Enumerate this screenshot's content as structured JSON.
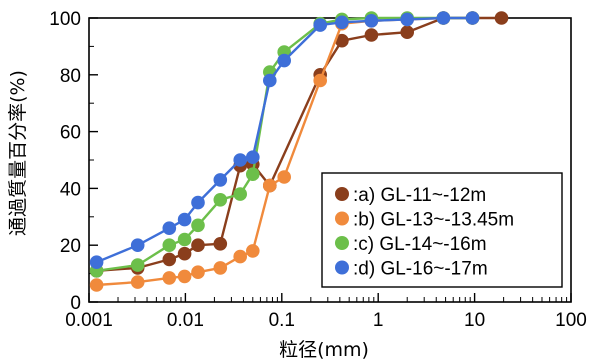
{
  "chart_data": {
    "type": "line",
    "xlabel": "粒径(mm)",
    "ylabel": "通過質量百分率(%)",
    "xscale": "log",
    "xlim": [
      0.001,
      100
    ],
    "ylim": [
      0,
      100
    ],
    "x_ticks": [
      {
        "value": 0.001,
        "label": "0.001"
      },
      {
        "value": 0.01,
        "label": "0.01"
      },
      {
        "value": 0.1,
        "label": "0.1"
      },
      {
        "value": 1,
        "label": "1"
      },
      {
        "value": 10,
        "label": "10"
      },
      {
        "value": 100,
        "label": "100"
      }
    ],
    "y_ticks": [
      {
        "value": 0,
        "label": "0"
      },
      {
        "value": 20,
        "label": "20"
      },
      {
        "value": 40,
        "label": "40"
      },
      {
        "value": 60,
        "label": "60"
      },
      {
        "value": 80,
        "label": "80"
      },
      {
        "value": 100,
        "label": "100"
      }
    ],
    "grid": false,
    "legend_position": "bottom-right",
    "series": [
      {
        "name": ":a) GL-11~-12m",
        "color": "#8a3e1c",
        "points": [
          [
            0.0012,
            11
          ],
          [
            0.0032,
            12
          ],
          [
            0.0068,
            15
          ],
          [
            0.0098,
            17
          ],
          [
            0.0135,
            20
          ],
          [
            0.023,
            20.5
          ],
          [
            0.037,
            48
          ],
          [
            0.05,
            48.5
          ],
          [
            0.075,
            41
          ],
          [
            0.25,
            80
          ],
          [
            0.42,
            92
          ],
          [
            0.85,
            94
          ],
          [
            2.0,
            95
          ],
          [
            4.75,
            100
          ],
          [
            9.5,
            100
          ],
          [
            19,
            100
          ]
        ]
      },
      {
        "name": ":b) GL-13~-13.45m",
        "color": "#f08a3c",
        "points": [
          [
            0.0012,
            6
          ],
          [
            0.0032,
            7
          ],
          [
            0.0068,
            8.5
          ],
          [
            0.0098,
            9
          ],
          [
            0.0135,
            10.5
          ],
          [
            0.023,
            12
          ],
          [
            0.037,
            16
          ],
          [
            0.05,
            18
          ],
          [
            0.075,
            41
          ],
          [
            0.106,
            44
          ],
          [
            0.25,
            78
          ],
          [
            0.42,
            98
          ],
          [
            0.85,
            99
          ],
          [
            2.0,
            99.5
          ],
          [
            4.75,
            100
          ],
          [
            9.5,
            100
          ]
        ]
      },
      {
        "name": ":c) GL-14~-16m",
        "color": "#6cbf4a",
        "points": [
          [
            0.0012,
            11
          ],
          [
            0.0032,
            13
          ],
          [
            0.0068,
            20
          ],
          [
            0.0098,
            22
          ],
          [
            0.0135,
            27
          ],
          [
            0.023,
            36
          ],
          [
            0.037,
            38
          ],
          [
            0.05,
            45
          ],
          [
            0.075,
            81
          ],
          [
            0.106,
            88
          ],
          [
            0.25,
            98
          ],
          [
            0.42,
            99.5
          ],
          [
            0.85,
            100
          ],
          [
            2.0,
            100
          ],
          [
            4.75,
            100
          ],
          [
            9.5,
            100
          ]
        ]
      },
      {
        "name": ":d) GL-16~-17m",
        "color": "#3e6fd8",
        "points": [
          [
            0.0012,
            14
          ],
          [
            0.0032,
            20
          ],
          [
            0.0068,
            26
          ],
          [
            0.0098,
            29
          ],
          [
            0.0135,
            35
          ],
          [
            0.023,
            43
          ],
          [
            0.037,
            50
          ],
          [
            0.05,
            51
          ],
          [
            0.075,
            78
          ],
          [
            0.106,
            85
          ],
          [
            0.25,
            97.5
          ],
          [
            0.42,
            98.5
          ],
          [
            0.85,
            99
          ],
          [
            2.0,
            99.5
          ],
          [
            4.75,
            100
          ],
          [
            9.5,
            100
          ]
        ]
      }
    ]
  }
}
